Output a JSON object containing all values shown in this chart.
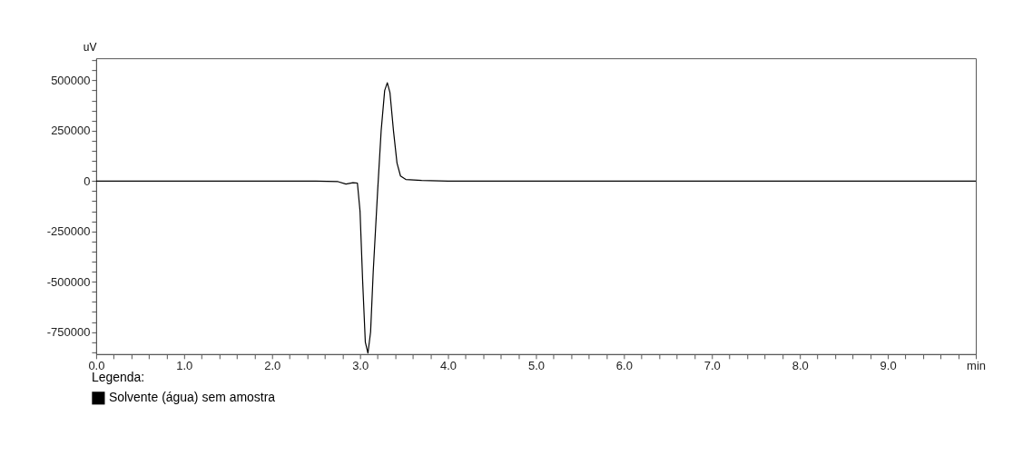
{
  "chart_data": {
    "type": "line",
    "ylabel": "uV",
    "legend_title": "Legenda:",
    "legend": "bottom left",
    "grid": false,
    "line_style": "solid",
    "marker": "none",
    "xlim": [
      0,
      10
    ],
    "ylim": [
      -860000,
      610000
    ],
    "xticks": [
      {
        "value": 0,
        "label": "0.0"
      },
      {
        "value": 0.2,
        "label": null
      },
      {
        "value": 0.4,
        "label": null
      },
      {
        "value": 0.6,
        "label": null
      },
      {
        "value": 0.8,
        "label": null
      },
      {
        "value": 1,
        "label": "1.0"
      },
      {
        "value": 1.2,
        "label": null
      },
      {
        "value": 1.4,
        "label": null
      },
      {
        "value": 1.6,
        "label": null
      },
      {
        "value": 1.8,
        "label": null
      },
      {
        "value": 2,
        "label": "2.0"
      },
      {
        "value": 2.2,
        "label": null
      },
      {
        "value": 2.4,
        "label": null
      },
      {
        "value": 2.6,
        "label": null
      },
      {
        "value": 2.8,
        "label": null
      },
      {
        "value": 3,
        "label": "3.0"
      },
      {
        "value": 3.2,
        "label": null
      },
      {
        "value": 3.4,
        "label": null
      },
      {
        "value": 3.6,
        "label": null
      },
      {
        "value": 3.8,
        "label": null
      },
      {
        "value": 4,
        "label": "4.0"
      },
      {
        "value": 4.2,
        "label": null
      },
      {
        "value": 4.4,
        "label": null
      },
      {
        "value": 4.6,
        "label": null
      },
      {
        "value": 4.8,
        "label": null
      },
      {
        "value": 5,
        "label": "5.0"
      },
      {
        "value": 5.2,
        "label": null
      },
      {
        "value": 5.4,
        "label": null
      },
      {
        "value": 5.6,
        "label": null
      },
      {
        "value": 5.8,
        "label": null
      },
      {
        "value": 6,
        "label": "6.0"
      },
      {
        "value": 6.2,
        "label": null
      },
      {
        "value": 6.4,
        "label": null
      },
      {
        "value": 6.6,
        "label": null
      },
      {
        "value": 6.8,
        "label": null
      },
      {
        "value": 7,
        "label": "7.0"
      },
      {
        "value": 7.2,
        "label": null
      },
      {
        "value": 7.4,
        "label": null
      },
      {
        "value": 7.6,
        "label": null
      },
      {
        "value": 7.8,
        "label": null
      },
      {
        "value": 8,
        "label": "8.0"
      },
      {
        "value": 8.2,
        "label": null
      },
      {
        "value": 8.4,
        "label": null
      },
      {
        "value": 8.6,
        "label": null
      },
      {
        "value": 8.8,
        "label": null
      },
      {
        "value": 9,
        "label": "9.0"
      },
      {
        "value": 9.2,
        "label": null
      },
      {
        "value": 9.4,
        "label": null
      },
      {
        "value": 9.6,
        "label": null
      },
      {
        "value": 9.8,
        "label": null
      },
      {
        "value": 10,
        "label": "min"
      }
    ],
    "yticks": [
      {
        "value": -850000,
        "label": null
      },
      {
        "value": -800000,
        "label": null
      },
      -750000,
      {
        "value": -700000,
        "label": null
      },
      {
        "value": -650000,
        "label": null
      },
      {
        "value": -600000,
        "label": null
      },
      {
        "value": -550000,
        "label": null
      },
      -500000,
      {
        "value": -450000,
        "label": null
      },
      {
        "value": -400000,
        "label": null
      },
      {
        "value": -350000,
        "label": null
      },
      {
        "value": -300000,
        "label": null
      },
      -250000,
      {
        "value": -200000,
        "label": null
      },
      {
        "value": -150000,
        "label": null
      },
      {
        "value": -100000,
        "label": null
      },
      {
        "value": -50000,
        "label": null
      },
      0,
      {
        "value": 50000,
        "label": null
      },
      {
        "value": 100000,
        "label": null
      },
      {
        "value": 150000,
        "label": null
      },
      {
        "value": 200000,
        "label": null
      },
      250000,
      {
        "value": 300000,
        "label": null
      },
      {
        "value": 350000,
        "label": null
      },
      {
        "value": 400000,
        "label": null
      },
      {
        "value": 450000,
        "label": null
      },
      500000,
      {
        "value": 550000,
        "label": null
      },
      {
        "value": 600000,
        "label": null
      }
    ],
    "series": [
      {
        "name": "Solvente (água) sem amostra",
        "color": "#000000",
        "x": [
          0,
          0.5,
          1.0,
          1.5,
          2.0,
          2.5,
          2.75,
          2.84,
          2.92,
          2.97,
          3.0,
          3.03,
          3.06,
          3.09,
          3.12,
          3.15,
          3.2,
          3.24,
          3.28,
          3.31,
          3.34,
          3.38,
          3.42,
          3.46,
          3.52,
          3.7,
          4.0,
          5.0,
          6.0,
          7.0,
          8.0,
          9.0,
          10.0
        ],
        "values": [
          0,
          0,
          0,
          0,
          0,
          0,
          -3000,
          -15000,
          -8000,
          -10000,
          -150000,
          -500000,
          -800000,
          -855000,
          -750000,
          -450000,
          -50000,
          250000,
          450000,
          488000,
          440000,
          250000,
          90000,
          25000,
          8000,
          3000,
          0,
          0,
          0,
          0,
          0,
          0,
          0
        ]
      }
    ]
  }
}
